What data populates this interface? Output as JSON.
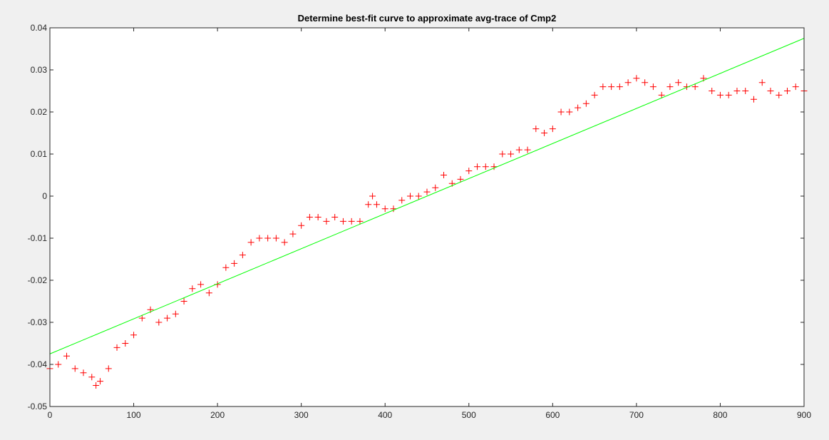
{
  "chart_data": {
    "type": "scatter",
    "title": "Determine best-fit curve to approximate avg-trace of Cmp2",
    "xlabel": "",
    "ylabel": "",
    "xlim": [
      0,
      900
    ],
    "ylim": [
      -0.05,
      0.04
    ],
    "grid": false,
    "x_ticks": [
      0,
      100,
      200,
      300,
      400,
      500,
      600,
      700,
      800,
      900
    ],
    "x_tick_labels": [
      "0",
      "100",
      "200",
      "300",
      "400",
      "500",
      "600",
      "700",
      "800",
      "900"
    ],
    "y_ticks": [
      0.04,
      0.03,
      0.02,
      0.01,
      0,
      -0.01,
      -0.02,
      -0.03,
      -0.04,
      -0.05
    ],
    "y_tick_labels": [
      "0.04",
      "0.03",
      "0.02",
      "0.01",
      "0",
      "-0.01",
      "-0.02",
      "-0.03",
      "-0.04",
      "-0.05"
    ],
    "series": [
      {
        "marker": "plus",
        "color": "#ff0000",
        "x": [
          0,
          10,
          20,
          30,
          40,
          50,
          55,
          60,
          70,
          80,
          90,
          100,
          110,
          120,
          130,
          140,
          150,
          160,
          170,
          180,
          190,
          200,
          210,
          220,
          230,
          240,
          250,
          260,
          270,
          280,
          290,
          300,
          310,
          320,
          330,
          340,
          350,
          360,
          370,
          380,
          385,
          390,
          400,
          410,
          420,
          430,
          440,
          450,
          460,
          470,
          480,
          490,
          500,
          510,
          520,
          530,
          540,
          550,
          560,
          570,
          580,
          590,
          600,
          610,
          620,
          630,
          640,
          650,
          660,
          670,
          680,
          690,
          700,
          710,
          720,
          730,
          740,
          750,
          760,
          770,
          780,
          790,
          800,
          810,
          820,
          830,
          840,
          850,
          860,
          870,
          880,
          890,
          900
        ],
        "y": [
          -0.041,
          -0.04,
          -0.038,
          -0.041,
          -0.042,
          -0.043,
          -0.045,
          -0.044,
          -0.041,
          -0.036,
          -0.035,
          -0.033,
          -0.029,
          -0.027,
          -0.03,
          -0.029,
          -0.028,
          -0.025,
          -0.022,
          -0.021,
          -0.023,
          -0.021,
          -0.017,
          -0.016,
          -0.014,
          -0.011,
          -0.01,
          -0.01,
          -0.01,
          -0.011,
          -0.009,
          -0.007,
          -0.005,
          -0.005,
          -0.006,
          -0.005,
          -0.006,
          -0.006,
          -0.006,
          -0.002,
          0.0,
          -0.002,
          -0.003,
          -0.003,
          -0.001,
          0.0,
          0.0,
          0.001,
          0.002,
          0.005,
          0.003,
          0.004,
          0.006,
          0.007,
          0.007,
          0.007,
          0.01,
          0.01,
          0.011,
          0.011,
          0.016,
          0.015,
          0.016,
          0.02,
          0.02,
          0.021,
          0.022,
          0.024,
          0.026,
          0.026,
          0.026,
          0.027,
          0.028,
          0.027,
          0.026,
          0.024,
          0.026,
          0.027,
          0.026,
          0.026,
          0.028,
          0.025,
          0.024,
          0.024,
          0.025,
          0.025,
          0.023,
          0.027,
          0.025,
          0.024,
          0.025,
          0.026,
          0.025
        ]
      },
      {
        "marker": "line",
        "color": "#00ff00",
        "x": [
          0,
          900
        ],
        "y": [
          -0.0375,
          0.0375
        ]
      }
    ]
  }
}
